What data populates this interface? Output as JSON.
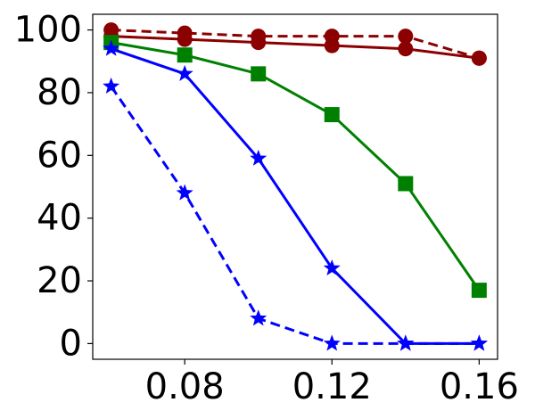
{
  "chart_data": {
    "type": "line",
    "title": "",
    "xlabel": "",
    "ylabel": "",
    "x": [
      0.06,
      0.08,
      0.1,
      0.12,
      0.14,
      0.16
    ],
    "xlim": [
      0.055,
      0.165
    ],
    "ylim": [
      -5,
      105
    ],
    "x_ticks": [
      0.08,
      0.12,
      0.16
    ],
    "x_tick_labels": [
      "0.08",
      "0.12",
      "0.16"
    ],
    "y_ticks": [
      0,
      20,
      40,
      60,
      80,
      100
    ],
    "y_tick_labels": [
      "0",
      "20",
      "40",
      "60",
      "80",
      "100"
    ],
    "grid": false,
    "legend": "none",
    "series": [
      {
        "values": [
          100,
          99,
          98,
          98,
          98,
          91
        ],
        "color": "#8b0000",
        "line_style": "dashed",
        "marker": "circle"
      },
      {
        "values": [
          98,
          97,
          96,
          95,
          94,
          91
        ],
        "color": "#8b0000",
        "line_style": "solid",
        "marker": "circle"
      },
      {
        "values": [
          96,
          92,
          86,
          73,
          51,
          17
        ],
        "color": "#008000",
        "line_style": "solid",
        "marker": "square"
      },
      {
        "values": [
          94,
          86,
          59,
          24,
          0,
          0
        ],
        "color": "#0000ff",
        "line_style": "solid",
        "marker": "star"
      },
      {
        "values": [
          82,
          48,
          8,
          0,
          0,
          0
        ],
        "color": "#0000ff",
        "line_style": "dashed",
        "marker": "star"
      }
    ]
  }
}
